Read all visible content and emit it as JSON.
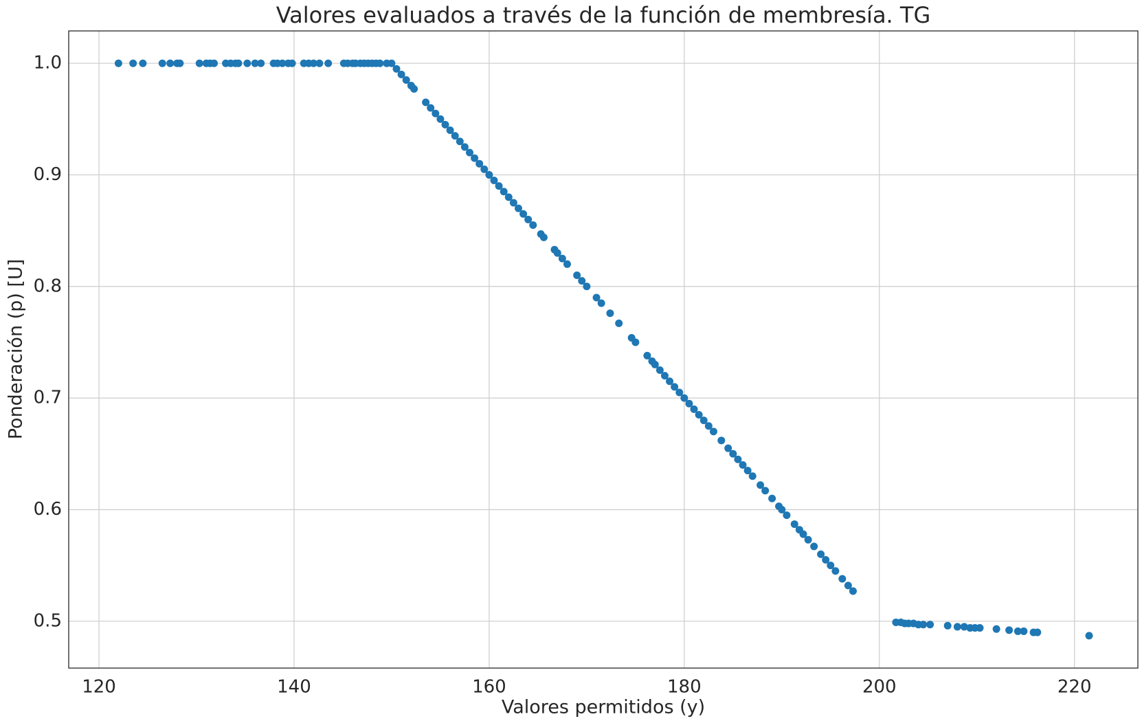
{
  "chart_data": {
    "type": "scatter",
    "title": "Valores evaluados a través de la función de membresía. TG",
    "xlabel": "Valores permitidos (y)",
    "ylabel": "Ponderación (p) [U]",
    "color": "#1f77b4",
    "grid": true,
    "xlim": [
      116.9,
      226.5
    ],
    "ylim": [
      0.458,
      1.029
    ],
    "xticks": [
      120,
      140,
      160,
      180,
      200,
      220
    ],
    "yticks": [
      0.5,
      0.6,
      0.7,
      0.8,
      0.9,
      {
        "value": 1,
        "label": "1.0"
      }
    ],
    "x": [
      122,
      123.5,
      124.5,
      126.5,
      127.3,
      128,
      128.3,
      130.3,
      131,
      131.4,
      131.8,
      133,
      133.5,
      134,
      134.3,
      135.2,
      136,
      136.6,
      137.9,
      138.3,
      138.8,
      139.4,
      139.8,
      141,
      141.5,
      142,
      142.6,
      143.5,
      145.1,
      145.5,
      146,
      146.3,
      146.8,
      147.2,
      147.6,
      148,
      148.4,
      148.8,
      149.5,
      150,
      150.5,
      151,
      151.5,
      152,
      152.3,
      153.5,
      154,
      154.5,
      155,
      155.5,
      156,
      156.5,
      157,
      157.5,
      158,
      158.5,
      159,
      159.5,
      160,
      160.5,
      161,
      161.5,
      162,
      162.5,
      163,
      163.5,
      164,
      164.5,
      165.3,
      165.6,
      166.7,
      167,
      167.5,
      168,
      169,
      169.5,
      170,
      171,
      171.5,
      172.4,
      173.3,
      174.6,
      175,
      176.2,
      176.7,
      177,
      177.5,
      178,
      178.5,
      179,
      179.5,
      180,
      180.5,
      181,
      181.5,
      182,
      182.5,
      183,
      183.8,
      184.5,
      185,
      185.5,
      186,
      186.5,
      187,
      187.8,
      188.3,
      189,
      189.7,
      190,
      190.5,
      191.3,
      191.8,
      192.2,
      192.7,
      193.3,
      194,
      194.5,
      195,
      195.5,
      196.2,
      196.8,
      197.3,
      201.7,
      202.2,
      202.6,
      203,
      203.5,
      204,
      204.5,
      205.2,
      207,
      208,
      208.7,
      209.3,
      209.8,
      210.3,
      212,
      213.3,
      214.2,
      214.8,
      215.8,
      216.2,
      221.5
    ],
    "y": [
      1,
      1,
      1,
      1,
      1,
      1,
      1,
      1,
      1,
      1,
      1,
      1,
      1,
      1,
      1,
      1,
      1,
      1,
      1,
      1,
      1,
      1,
      1,
      1,
      1,
      1,
      1,
      1,
      1,
      1,
      1,
      1,
      1,
      1,
      1,
      1,
      1,
      1,
      1,
      1,
      0.995,
      0.99,
      0.985,
      0.98,
      0.977,
      0.965,
      0.96,
      0.955,
      0.95,
      0.945,
      0.94,
      0.935,
      0.93,
      0.925,
      0.92,
      0.915,
      0.91,
      0.905,
      0.9,
      0.895,
      0.89,
      0.885,
      0.88,
      0.875,
      0.87,
      0.865,
      0.86,
      0.855,
      0.847,
      0.844,
      0.833,
      0.83,
      0.825,
      0.82,
      0.81,
      0.805,
      0.8,
      0.79,
      0.785,
      0.776,
      0.767,
      0.754,
      0.75,
      0.738,
      0.733,
      0.73,
      0.725,
      0.72,
      0.715,
      0.71,
      0.705,
      0.7,
      0.695,
      0.69,
      0.685,
      0.68,
      0.675,
      0.67,
      0.662,
      0.655,
      0.65,
      0.645,
      0.64,
      0.635,
      0.63,
      0.622,
      0.617,
      0.61,
      0.603,
      0.6,
      0.595,
      0.587,
      0.582,
      0.578,
      0.573,
      0.567,
      0.56,
      0.555,
      0.55,
      0.545,
      0.538,
      0.532,
      0.527,
      0.499,
      0.499,
      0.498,
      0.498,
      0.498,
      0.497,
      0.497,
      0.497,
      0.496,
      0.495,
      0.495,
      0.494,
      0.494,
      0.494,
      0.493,
      0.492,
      0.491,
      0.491,
      0.49,
      0.49,
      0.487
    ]
  }
}
